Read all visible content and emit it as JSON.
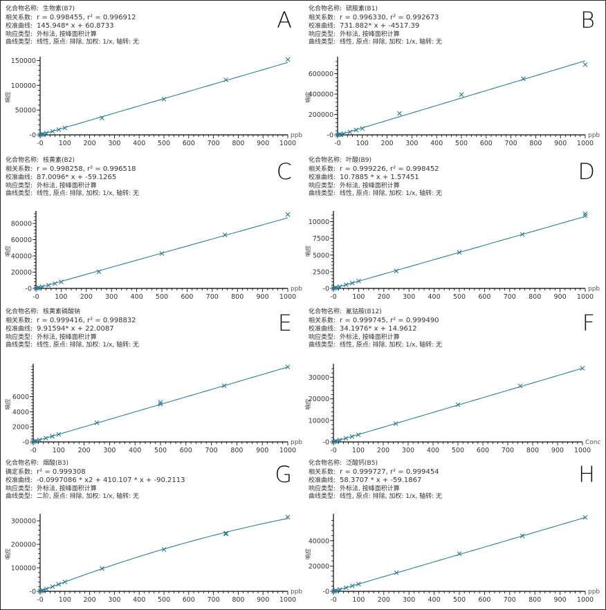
{
  "labels": {
    "compound": "化合物名称:",
    "correlation": "相关系数:",
    "determination": "确定系数:",
    "curve": "校准曲线:",
    "response_type": "响应类型:",
    "curve_type": "曲线类型:"
  },
  "y_axis_label": "响应",
  "colors": {
    "line": "#2c7f96",
    "marker": "#2a7a94",
    "axis": "#000000"
  },
  "chart_data": [
    {
      "type": "scatter",
      "letter": "A",
      "compound": "生物素(B7)",
      "stats": "r = 0.998455, r² = 0.996912",
      "equation": "145.948* x + 60.8733",
      "response": "外标法, 按峰面积计算",
      "curve_type": "线性, 原点:  排除, 加权:  1/x, 轴转:  无",
      "stats_label": "correlation",
      "fit": {
        "kind": "linear",
        "a": 0,
        "b": 145.948,
        "c": 60.8733
      },
      "xlabel": "ppb",
      "xlim": [
        0,
        1000
      ],
      "ylim": [
        0,
        152000
      ],
      "xticks": [
        "-0",
        "100",
        "200",
        "300",
        "400",
        "500",
        "600",
        "700",
        "800",
        "900",
        "1000"
      ],
      "yticks": [
        {
          "v": 0,
          "t": "-0"
        },
        {
          "v": 50000,
          "t": "50000"
        },
        {
          "v": 100000,
          "t": "100000"
        },
        {
          "v": 150000,
          "t": "150000"
        }
      ],
      "x": [
        0,
        5,
        10,
        25,
        50,
        75,
        100,
        250,
        500,
        750,
        1000
      ],
      "y": [
        0,
        800,
        1500,
        3700,
        7000,
        10500,
        14000,
        34000,
        72000,
        111000,
        152000
      ]
    },
    {
      "type": "scatter",
      "letter": "B",
      "compound": "硫胺素(B1)",
      "stats": "r = 0.996330, r² = 0.992673",
      "equation": "731.882* x + -4517.39",
      "response": "外标法, 按峰面积计算",
      "curve_type": "线性, 原点:  排除, 加权:  1/x, 轴转:  无",
      "stats_label": "correlation",
      "fit": {
        "kind": "linear",
        "a": 0,
        "b": 731.882,
        "c": -4517.39
      },
      "xlabel": "ppb",
      "xlim": [
        0,
        1000
      ],
      "ylim": [
        0,
        740000
      ],
      "xticks": [
        "-0",
        "100",
        "200",
        "300",
        "400",
        "500",
        "600",
        "700",
        "800",
        "900",
        "1000"
      ],
      "yticks": [
        {
          "v": 0,
          "t": "-0"
        },
        {
          "v": 200000,
          "t": "200000"
        },
        {
          "v": 400000,
          "t": "400000"
        },
        {
          "v": 600000,
          "t": "600000"
        }
      ],
      "x": [
        0,
        5,
        10,
        25,
        50,
        75,
        100,
        250,
        500,
        750,
        1000
      ],
      "y": [
        0,
        2000,
        4000,
        12000,
        28000,
        48000,
        62000,
        210000,
        395000,
        552000,
        690000
      ]
    },
    {
      "type": "scatter",
      "letter": "C",
      "compound": "核黄素(B2)",
      "stats": "r = 0.998258, r² = 0.996518",
      "equation": "87.0096* x + -59.1265",
      "response": "外标法, 按峰面积计算",
      "curve_type": "线性, 原点:  排除, 加权:  1/x, 轴转:  无",
      "stats_label": "correlation",
      "fit": {
        "kind": "linear",
        "a": 0,
        "b": 87.0096,
        "c": -59.1265
      },
      "xlabel": "ppb",
      "xlim": [
        0,
        1000
      ],
      "ylim": [
        0,
        92000
      ],
      "xticks": [
        "-0",
        "100",
        "200",
        "300",
        "400",
        "500",
        "600",
        "700",
        "800",
        "900",
        "1000"
      ],
      "yticks": [
        {
          "v": 0,
          "t": "-0"
        },
        {
          "v": 20000,
          "t": "20000"
        },
        {
          "v": 40000,
          "t": "40000"
        },
        {
          "v": 60000,
          "t": "60000"
        },
        {
          "v": 80000,
          "t": "80000"
        }
      ],
      "x": [
        0,
        5,
        10,
        25,
        50,
        75,
        100,
        250,
        500,
        750,
        1000
      ],
      "y": [
        0,
        400,
        800,
        2000,
        3800,
        6000,
        8000,
        20500,
        43000,
        66000,
        91000
      ]
    },
    {
      "type": "scatter",
      "letter": "D",
      "compound": "叶酸(B9)",
      "stats": "r = 0.999226, r² = 0.998452",
      "equation": "10.7885 * x + 1.57451",
      "response": "外标法, 按峰面积计算",
      "curve_type": "线性, 原点:  排除, 加权:  1/x, 轴转:  无",
      "stats_label": "correlation",
      "fit": {
        "kind": "linear",
        "a": 0,
        "b": 10.7885,
        "c": 1.57451
      },
      "xlabel": "ppb",
      "xlim": [
        0,
        1000
      ],
      "ylim": [
        0,
        11200
      ],
      "xticks": [
        "-0",
        "100",
        "200",
        "300",
        "400",
        "500",
        "600",
        "700",
        "800",
        "900",
        "1000"
      ],
      "yticks": [
        {
          "v": 0,
          "t": "-0"
        },
        {
          "v": 2500,
          "t": "2500"
        },
        {
          "v": 5000,
          "t": "5000"
        },
        {
          "v": 7500,
          "t": "7500"
        },
        {
          "v": 10000,
          "t": "10000"
        }
      ],
      "x": [
        0,
        5,
        10,
        25,
        50,
        75,
        100,
        250,
        500,
        750,
        1000,
        1000
      ],
      "y": [
        0,
        60,
        110,
        260,
        550,
        800,
        1100,
        2600,
        5400,
        8100,
        10900,
        11200
      ]
    },
    {
      "type": "scatter",
      "letter": "E",
      "compound": "核黄素磷酸钠",
      "stats": "r = 0.999416, r² = 0.998832",
      "equation": "9.91594* x + 22.0087",
      "response": "外标法, 按峰面积计算",
      "curve_type": "线性, 原点:  排除, 加权:  1/x, 轴转:  无",
      "stats_label": "correlation",
      "fit": {
        "kind": "linear",
        "a": 0,
        "b": 9.91594,
        "c": 22.0087
      },
      "xlabel": "ppb",
      "xlim": [
        0,
        1000
      ],
      "ylim": [
        0,
        10000
      ],
      "xticks": [
        "-0",
        "100",
        "200",
        "300",
        "400",
        "500",
        "600",
        "700",
        "800",
        "900",
        "1000"
      ],
      "yticks": [
        {
          "v": 0,
          "t": "-0"
        },
        {
          "v": 2000,
          "t": "2000"
        },
        {
          "v": 4000,
          "t": "4000"
        },
        {
          "v": 6000,
          "t": "6000"
        }
      ],
      "x": [
        0,
        5,
        10,
        25,
        50,
        75,
        100,
        250,
        500,
        500,
        750,
        1000
      ],
      "y": [
        0,
        80,
        130,
        270,
        500,
        750,
        1000,
        2550,
        5000,
        5250,
        7450,
        9950
      ]
    },
    {
      "type": "scatter",
      "letter": "F",
      "compound": "氰钴胺(B12)",
      "stats": "r = 0.999745, r² = 0.999490",
      "equation": "34.1976* x + 14.9612",
      "response": "外标法, 按峰面积计算",
      "curve_type": "线性, 原点:  排除, 加权:  1/x, 轴转:  无",
      "stats_label": "correlation",
      "fit": {
        "kind": "linear",
        "a": 0,
        "b": 34.1976,
        "c": 14.9612
      },
      "xlabel": "Conc",
      "xlim": [
        0,
        1000
      ],
      "ylim": [
        0,
        35000
      ],
      "xticks": [
        "-0",
        "100",
        "200",
        "300",
        "400",
        "500",
        "600",
        "700",
        "800",
        "900",
        "1000"
      ],
      "yticks": [
        {
          "v": 0,
          "t": "-0"
        },
        {
          "v": 10000,
          "t": "10000"
        },
        {
          "v": 20000,
          "t": "20000"
        },
        {
          "v": 30000,
          "t": "30000"
        }
      ],
      "x": [
        0,
        5,
        10,
        25,
        50,
        75,
        100,
        250,
        500,
        750,
        1000
      ],
      "y": [
        0,
        200,
        400,
        900,
        1700,
        2500,
        3300,
        8500,
        17300,
        26000,
        34200
      ]
    },
    {
      "type": "scatter",
      "letter": "G",
      "compound": "烟酸(B3)",
      "stats": "r² = 0.999308",
      "equation": "-0.0997086 * x2 + 410.107 * x + -90.2113",
      "response": "外标法, 按峰面积计算",
      "curve_type": "二阶, 原点:  排除, 加权:  1/x, 轴转:  无",
      "stats_label": "determination",
      "fit": {
        "kind": "quadratic",
        "a": -0.0997086,
        "b": 410.107,
        "c": -90.2113
      },
      "xlabel": "ppb",
      "xlim": [
        0,
        1000
      ],
      "ylim": [
        0,
        318000
      ],
      "xticks": [
        "-0",
        "100",
        "200",
        "300",
        "400",
        "500",
        "600",
        "700",
        "800",
        "900",
        "1000"
      ],
      "yticks": [
        {
          "v": 0,
          "t": "-0"
        },
        {
          "v": 100000,
          "t": "100000"
        },
        {
          "v": 200000,
          "t": "200000"
        },
        {
          "v": 300000,
          "t": "300000"
        }
      ],
      "x": [
        0,
        5,
        10,
        25,
        50,
        75,
        100,
        250,
        500,
        750,
        750,
        1000
      ],
      "y": [
        0,
        2000,
        4000,
        10000,
        20000,
        30000,
        40000,
        97000,
        178000,
        248000,
        244000,
        316000
      ]
    },
    {
      "type": "scatter",
      "letter": "H",
      "compound": "泛酸钙(B5)",
      "stats": "r = 0.999727, r² = 0.999454",
      "equation": "58.3707 * x + -59.1867",
      "response": "外标法, 按峰面积计算",
      "curve_type": "线性, 原点:  排除, 加权:  1/x, 轴转:  无",
      "stats_label": "correlation",
      "fit": {
        "kind": "linear",
        "a": 0,
        "b": 58.3707,
        "c": -59.1867
      },
      "xlabel": "ppb",
      "xlim": [
        0,
        1000
      ],
      "ylim": [
        0,
        59000
      ],
      "xticks": [
        "-0",
        "100",
        "200",
        "300",
        "400",
        "500",
        "600",
        "700",
        "800",
        "900",
        "1000"
      ],
      "yticks": [
        {
          "v": 0,
          "t": "-0"
        },
        {
          "v": 20000,
          "t": "20000"
        },
        {
          "v": 40000,
          "t": "40000"
        }
      ],
      "x": [
        0,
        5,
        10,
        25,
        50,
        75,
        100,
        250,
        500,
        750,
        1000
      ],
      "y": [
        0,
        250,
        550,
        1400,
        2800,
        4300,
        5700,
        14700,
        29700,
        43800,
        58400
      ]
    }
  ]
}
